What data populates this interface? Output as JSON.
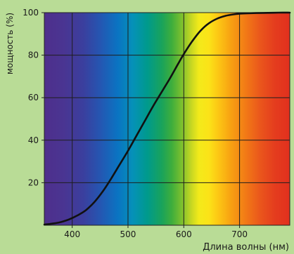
{
  "chart_data": {
    "type": "line",
    "title": "",
    "xlabel": "Длина волны (нм)",
    "ylabel": "мощность (%)",
    "xlim": [
      350,
      790
    ],
    "ylim": [
      0,
      100
    ],
    "x_ticks": [
      400,
      500,
      600,
      700
    ],
    "y_ticks": [
      20,
      40,
      60,
      80,
      100
    ],
    "grid": true,
    "background": "visible-spectrum gradient (violet to red)",
    "series": [
      {
        "color": "#111111",
        "x": [
          350,
          360,
          375,
          390,
          400,
          412,
          425,
          440,
          455,
          470,
          485,
          500,
          515,
          530,
          545,
          560,
          575,
          590,
          600,
          615,
          630,
          645,
          660,
          675,
          690,
          700,
          715,
          730,
          750,
          770,
          790
        ],
        "y": [
          0.3,
          0.6,
          1.2,
          2.3,
          3.4,
          5,
          7.2,
          11,
          16,
          22,
          28.5,
          35,
          42,
          49,
          56,
          62.5,
          69,
          76,
          80.5,
          86.5,
          91.5,
          95,
          97.2,
          98.5,
          99.2,
          99.5,
          99.7,
          99.8,
          99.9,
          100,
          100
        ]
      }
    ]
  }
}
